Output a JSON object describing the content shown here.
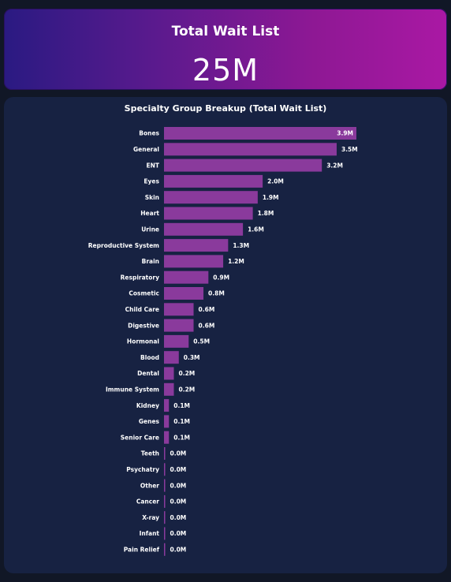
{
  "kpi": {
    "title": "Total Wait List",
    "value": "25M"
  },
  "colors": {
    "bar": "#8a3a9c",
    "card_background": "#172242",
    "page_background": "#111726",
    "text": "#ffffff"
  },
  "chart_data": {
    "type": "bar",
    "orientation": "horizontal",
    "title": "Specialty Group Breakup (Total Wait List)",
    "categories": [
      "Bones",
      "General",
      "ENT",
      "Eyes",
      "Skin",
      "Heart",
      "Urine",
      "Reproductive System",
      "Brain",
      "Respiratory",
      "Cosmetic",
      "Child Care",
      "Digestive",
      "Hormonal",
      "Blood",
      "Dental",
      "Immune System",
      "Kidney",
      "Genes",
      "Senior Care",
      "Teeth",
      "Psychatry",
      "Other",
      "Cancer",
      "X-ray",
      "Infant",
      "Pain Relief"
    ],
    "values": [
      3.9,
      3.5,
      3.2,
      2.0,
      1.9,
      1.8,
      1.6,
      1.3,
      1.2,
      0.9,
      0.8,
      0.6,
      0.6,
      0.5,
      0.3,
      0.2,
      0.2,
      0.1,
      0.1,
      0.1,
      0.02,
      0.02,
      0.02,
      0.02,
      0.02,
      0.02,
      0.02
    ],
    "value_labels": [
      "3.9M",
      "3.5M",
      "3.2M",
      "2.0M",
      "1.9M",
      "1.8M",
      "1.6M",
      "1.3M",
      "1.2M",
      "0.9M",
      "0.8M",
      "0.6M",
      "0.6M",
      "0.5M",
      "0.3M",
      "0.2M",
      "0.2M",
      "0.1M",
      "0.1M",
      "0.1M",
      "0.0M",
      "0.0M",
      "0.0M",
      "0.0M",
      "0.0M",
      "0.0M",
      "0.0M"
    ],
    "unit": "M",
    "xlim": [
      0,
      3.9
    ],
    "grid": false,
    "legend": false
  }
}
